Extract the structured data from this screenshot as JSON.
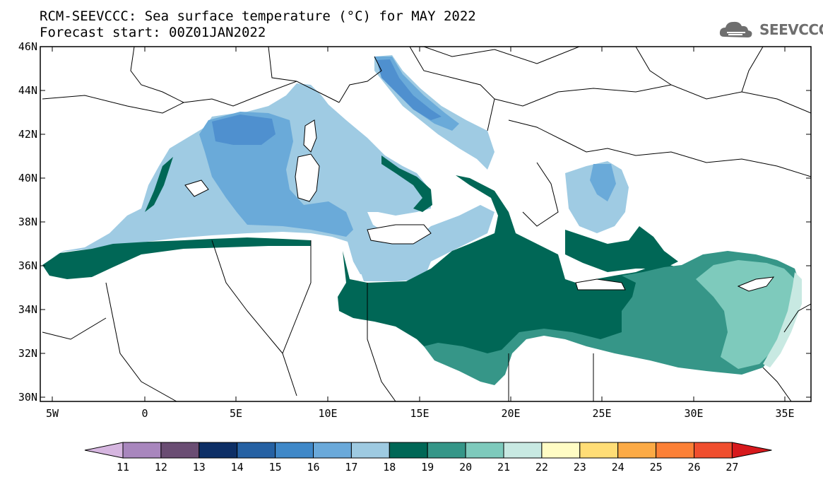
{
  "title_line1": "RCM-SEEVCCC: Sea surface temperature (°C) for MAY 2022",
  "title_line2": "Forecast start: 00Z01JAN2022",
  "logo_text": "SEEVCCC",
  "map": {
    "lon_range": [
      -5.5,
      36.5
    ],
    "lat_range": [
      29.8,
      46
    ],
    "lat_ticks": [
      "46N",
      "44N",
      "42N",
      "40N",
      "38N",
      "36N",
      "34N",
      "32N",
      "30N"
    ],
    "lon_ticks": [
      "5W",
      "0",
      "5E",
      "10E",
      "15E",
      "20E",
      "25E",
      "30E",
      "35E"
    ]
  },
  "colorbar": {
    "labels": [
      "11",
      "12",
      "13",
      "14",
      "15",
      "16",
      "17",
      "18",
      "19",
      "20",
      "21",
      "22",
      "23",
      "24",
      "25",
      "26",
      "27"
    ],
    "colors": [
      "#d6b6e0",
      "#a886bd",
      "#6a4d73",
      "#0d2f66",
      "#2561a3",
      "#3f88c8",
      "#6aa9da",
      "#9ecae1",
      "#006756",
      "#359688",
      "#7ecabc",
      "#c8e9e2",
      "#fffcc4",
      "#ffdd76",
      "#fcaa45",
      "#fc8036",
      "#f04e2e",
      "#d7191c"
    ]
  },
  "sst_classes": {
    "16": "#4f90cf",
    "17": "#6aaad9",
    "18": "#9fcbe3",
    "19": "#006756",
    "20": "#369688",
    "21": "#7ecabc",
    "22": "#c8e9e2"
  }
}
